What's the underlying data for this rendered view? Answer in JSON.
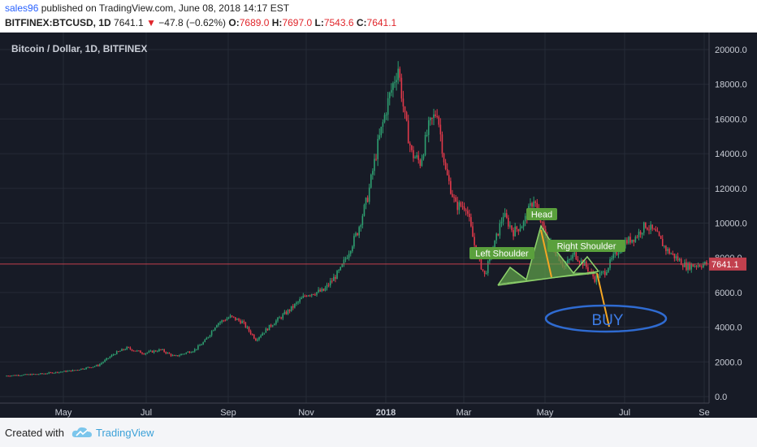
{
  "header": {
    "user": "sales96",
    "published_text": " published on TradingView.com, June 08, 2018 14:17 EST",
    "symbol": "BITFINEX:BTCUSD, 1D",
    "last": "7641.1",
    "change": "−47.8 (−0.62%)",
    "o_label": "O:",
    "o_value": "7689.0",
    "h_label": "H:",
    "h_value": "7697.0",
    "l_label": "L:",
    "l_value": "7543.6",
    "c_label": "C:",
    "c_value": "7641.1"
  },
  "footer": {
    "created_with": "Created with",
    "brand": "TradingView"
  },
  "colors": {
    "background": "#171b26",
    "up": "#2e9e70",
    "down": "#e0394a",
    "price_line": "#c2404e",
    "pattern_fill": "#5d9e4a",
    "label_bg": "#5aa03c",
    "arrow": "#f5a623",
    "buy_ellipse": "#2f6bd1",
    "buy_text": "#3d7ce6"
  },
  "chart_data": {
    "type": "candlestick",
    "title": "Bitcoin / Dollar, 1D, BITFINEX",
    "x_ticks": [
      "May",
      "Jul",
      "Sep",
      "Nov",
      "2018",
      "Mar",
      "May",
      "Jul",
      "Se"
    ],
    "y_ticks": [
      "0.0",
      "2000.0",
      "4000.0",
      "6000.0",
      "8000.0",
      "10000.0",
      "12000.0",
      "14000.0",
      "16000.0",
      "18000.0",
      "20000.0"
    ],
    "ylim": [
      0,
      20000
    ],
    "last_price_label": "7641.1",
    "last_price": 7641.1,
    "price_path": [
      {
        "t": 0,
        "p": 1200
      },
      {
        "t": 20,
        "p": 1300
      },
      {
        "t": 40,
        "p": 1500
      },
      {
        "t": 55,
        "p": 1800
      },
      {
        "t": 65,
        "p": 2500
      },
      {
        "t": 72,
        "p": 2800
      },
      {
        "t": 82,
        "p": 2500
      },
      {
        "t": 92,
        "p": 2700
      },
      {
        "t": 100,
        "p": 2300
      },
      {
        "t": 112,
        "p": 2700
      },
      {
        "t": 118,
        "p": 3200
      },
      {
        "t": 125,
        "p": 4200
      },
      {
        "t": 133,
        "p": 4600
      },
      {
        "t": 140,
        "p": 4300
      },
      {
        "t": 148,
        "p": 3300
      },
      {
        "t": 158,
        "p": 4200
      },
      {
        "t": 168,
        "p": 5000
      },
      {
        "t": 178,
        "p": 5900
      },
      {
        "t": 188,
        "p": 6100
      },
      {
        "t": 198,
        "p": 7300
      },
      {
        "t": 208,
        "p": 9500
      },
      {
        "t": 214,
        "p": 11500
      },
      {
        "t": 220,
        "p": 14500
      },
      {
        "t": 226,
        "p": 17000
      },
      {
        "t": 232,
        "p": 19000
      },
      {
        "t": 236,
        "p": 16000
      },
      {
        "t": 240,
        "p": 14000
      },
      {
        "t": 245,
        "p": 13500
      },
      {
        "t": 250,
        "p": 15500
      },
      {
        "t": 255,
        "p": 16500
      },
      {
        "t": 260,
        "p": 13000
      },
      {
        "t": 266,
        "p": 11000
      },
      {
        "t": 272,
        "p": 11000
      },
      {
        "t": 278,
        "p": 8300
      },
      {
        "t": 283,
        "p": 7000
      },
      {
        "t": 288,
        "p": 8500
      },
      {
        "t": 294,
        "p": 10500
      },
      {
        "t": 300,
        "p": 9500
      },
      {
        "t": 306,
        "p": 10000
      },
      {
        "t": 312,
        "p": 11400
      },
      {
        "t": 318,
        "p": 9500
      },
      {
        "t": 324,
        "p": 8500
      },
      {
        "t": 330,
        "p": 7500
      },
      {
        "t": 336,
        "p": 8200
      },
      {
        "t": 342,
        "p": 7600
      },
      {
        "t": 348,
        "p": 6800
      },
      {
        "t": 354,
        "p": 7200
      },
      {
        "t": 360,
        "p": 8200
      },
      {
        "t": 366,
        "p": 8900
      },
      {
        "t": 372,
        "p": 9200
      },
      {
        "t": 378,
        "p": 9900
      },
      {
        "t": 384,
        "p": 9400
      },
      {
        "t": 390,
        "p": 8500
      },
      {
        "t": 396,
        "p": 8000
      },
      {
        "t": 402,
        "p": 7500
      },
      {
        "t": 408,
        "p": 7600
      },
      {
        "t": 414,
        "p": 7641
      }
    ],
    "annotations": [
      {
        "text": "Left Shoulder",
        "type": "label"
      },
      {
        "text": "Head",
        "type": "label"
      },
      {
        "text": "Right Shoulder",
        "type": "label"
      },
      {
        "text": "BUY",
        "type": "ellipse"
      }
    ]
  }
}
